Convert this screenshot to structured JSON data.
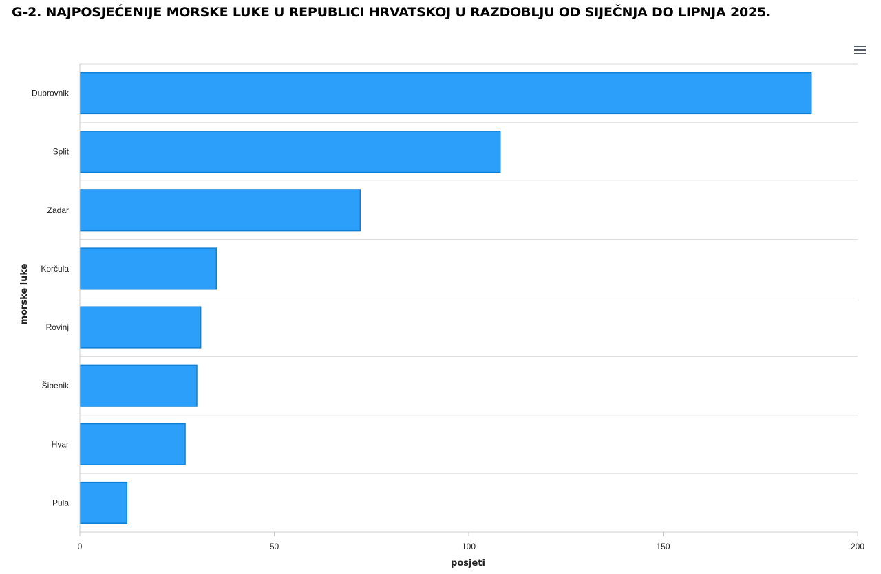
{
  "chart_data": {
    "type": "bar",
    "orientation": "horizontal",
    "title": "G-2. NAJPOSJEĆENIJE MORSKE LUKE U REPUBLICI HRVATSKOJ U RAZDOBLJU OD SIJEČNJA DO LIPNJA 2025.",
    "categories": [
      "Dubrovnik",
      "Split",
      "Zadar",
      "Korčula",
      "Rovinj",
      "Šibenik",
      "Hvar",
      "Pula"
    ],
    "values": [
      188,
      108,
      72,
      35,
      31,
      30,
      27,
      12
    ],
    "xlabel": "posjeti",
    "ylabel": "morske luke",
    "xlim": [
      0,
      200
    ],
    "xticks": [
      "0",
      "50",
      "100",
      "150",
      "200"
    ],
    "grid": true,
    "bar_color": "#2b9ffa",
    "bar_border_color": "#0f7fd6"
  },
  "toolbar": {
    "menu_icon": "hamburger-menu-icon"
  }
}
